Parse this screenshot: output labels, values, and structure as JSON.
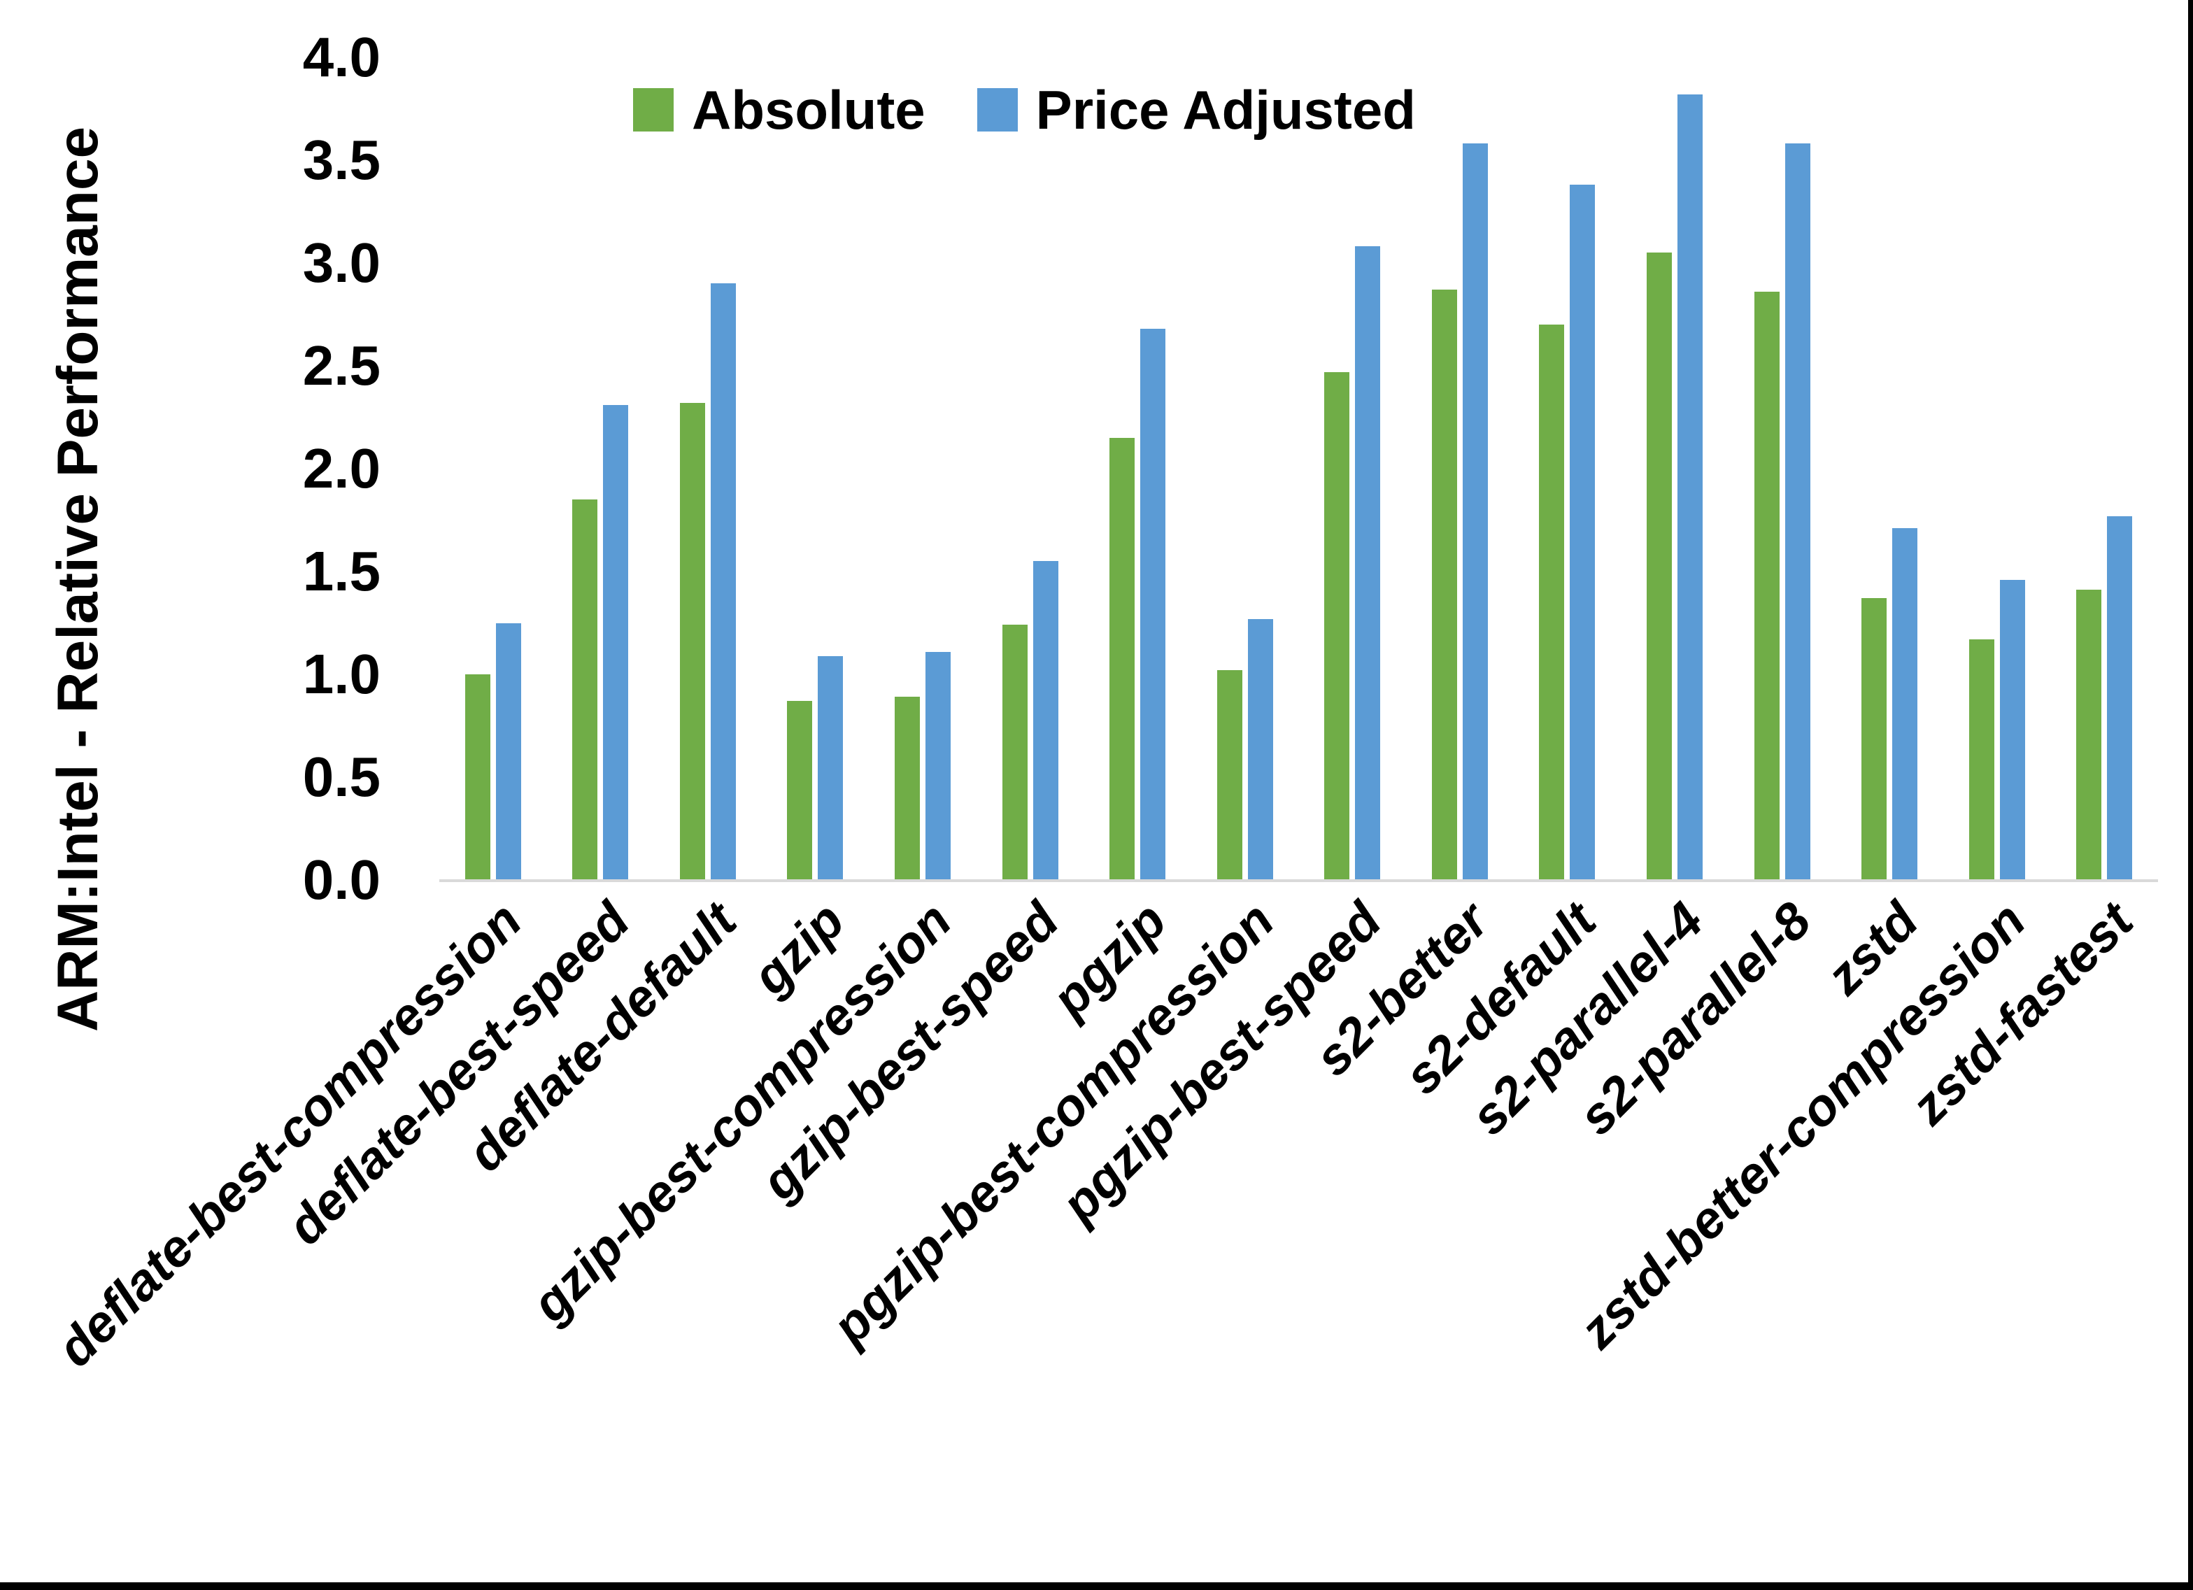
{
  "chart_data": {
    "type": "bar",
    "title": "",
    "xlabel": "",
    "ylabel": "ARM:Intel - Relative Performance",
    "ylim": [
      0.0,
      4.0
    ],
    "y_tick_step": 0.5,
    "y_ticks": [
      "0.0",
      "0.5",
      "1.0",
      "1.5",
      "2.0",
      "2.5",
      "3.0",
      "3.5",
      "4.0"
    ],
    "grid": false,
    "legend_position": "top-center-inside",
    "categories": [
      "deflate-best-compression",
      "deflate-best-speed",
      "deflate-default",
      "gzip",
      "gzip-best-compression",
      "gzip-best-speed",
      "pgzip",
      "pgzip-best-compression",
      "pgzip-best-speed",
      "s2-better",
      "s2-default",
      "s2-parallel-4",
      "s2-parallel-8",
      "zstd",
      "zstd-better-compression",
      "zstd-fastest"
    ],
    "series": [
      {
        "name": "Absolute",
        "color": "#70AD47",
        "values": [
          1.0,
          1.85,
          2.32,
          0.87,
          0.89,
          1.24,
          2.15,
          1.02,
          2.47,
          2.87,
          2.7,
          3.05,
          2.86,
          1.37,
          1.17,
          1.41
        ]
      },
      {
        "name": "Price Adjusted",
        "color": "#5B9BD5",
        "values": [
          1.25,
          2.31,
          2.9,
          1.09,
          1.11,
          1.55,
          2.68,
          1.27,
          3.08,
          3.58,
          3.38,
          3.82,
          3.58,
          1.71,
          1.46,
          1.77
        ]
      }
    ],
    "axis_line_color": "#D9D9D9"
  }
}
